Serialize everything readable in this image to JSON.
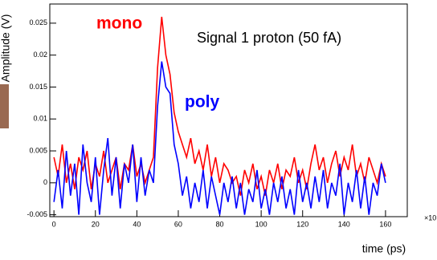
{
  "chart_data": {
    "type": "line",
    "title": "Signal 1 proton (50 fA)",
    "x_label": "time (ps)",
    "y_label": "Amplitude (V)",
    "x_multiplier": "×10",
    "x": [
      0,
      2,
      4,
      6,
      8,
      10,
      12,
      14,
      16,
      18,
      20,
      22,
      24,
      26,
      28,
      30,
      32,
      34,
      36,
      38,
      40,
      42,
      44,
      46,
      48,
      50,
      52,
      54,
      56,
      58,
      60,
      62,
      64,
      66,
      68,
      70,
      72,
      74,
      76,
      78,
      80,
      82,
      84,
      86,
      88,
      90,
      92,
      94,
      96,
      98,
      100,
      102,
      104,
      106,
      108,
      110,
      112,
      114,
      116,
      118,
      120,
      122,
      124,
      126,
      128,
      130,
      132,
      134,
      136,
      138,
      140,
      142,
      144,
      146,
      148,
      150,
      152,
      154,
      156,
      158,
      160
    ],
    "series": [
      {
        "name": "mono",
        "color": "#ff0000",
        "values": [
          0.004,
          0.001,
          0.006,
          0.0,
          0.003,
          -0.001,
          0.004,
          0.002,
          0.005,
          -0.001,
          0.003,
          0.001,
          0.005,
          0.0,
          0.002,
          0.004,
          -0.001,
          0.003,
          0.002,
          0.006,
          0.001,
          0.003,
          0.0,
          0.002,
          0.004,
          0.018,
          0.026,
          0.02,
          0.017,
          0.011,
          0.008,
          0.006,
          0.004,
          0.007,
          0.003,
          0.005,
          0.002,
          0.006,
          0.001,
          0.004,
          0.0,
          0.003,
          0.002,
          0.0,
          0.001,
          -0.002,
          0.002,
          0.0,
          0.003,
          -0.001,
          0.001,
          -0.002,
          0.002,
          0.0,
          0.003,
          -0.001,
          0.002,
          0.001,
          0.004,
          0.0,
          0.002,
          -0.001,
          0.003,
          0.006,
          0.002,
          0.004,
          0.0,
          0.003,
          0.005,
          0.001,
          0.004,
          0.002,
          0.006,
          0.001,
          0.003,
          0.0,
          0.004,
          0.002,
          0.0,
          0.003,
          0.001
        ]
      },
      {
        "name": "poly",
        "color": "#0000ff",
        "values": [
          -0.003,
          0.002,
          -0.004,
          0.005,
          -0.002,
          0.003,
          -0.005,
          0.006,
          0.0,
          -0.003,
          0.004,
          -0.005,
          0.002,
          0.007,
          -0.002,
          0.004,
          -0.004,
          0.003,
          0.0,
          0.006,
          -0.003,
          0.004,
          -0.002,
          0.002,
          0.0,
          0.012,
          0.019,
          0.015,
          0.014,
          0.006,
          0.003,
          -0.002,
          0.001,
          -0.004,
          0.0,
          -0.003,
          0.002,
          -0.004,
          0.001,
          -0.002,
          -0.005,
          0.0,
          -0.003,
          0.001,
          -0.004,
          0.0,
          -0.005,
          -0.001,
          -0.003,
          0.002,
          -0.004,
          -0.001,
          -0.005,
          0.0,
          -0.003,
          0.001,
          -0.004,
          -0.001,
          -0.005,
          0.002,
          -0.003,
          0.0,
          -0.004,
          0.001,
          -0.003,
          0.002,
          -0.004,
          0.0,
          -0.002,
          0.003,
          -0.005,
          0.0,
          -0.003,
          0.002,
          -0.004,
          0.001,
          -0.005,
          0.0,
          -0.002,
          0.003,
          0.0
        ]
      }
    ],
    "xlim": [
      -2,
      170.5
    ],
    "ylim": [
      -0.0053,
      0.028
    ],
    "xticks": [
      0,
      20,
      40,
      60,
      80,
      100,
      120,
      140,
      160
    ],
    "yticks": [
      -0.005,
      0,
      0.005,
      0.01,
      0.015,
      0.02,
      0.025
    ]
  }
}
